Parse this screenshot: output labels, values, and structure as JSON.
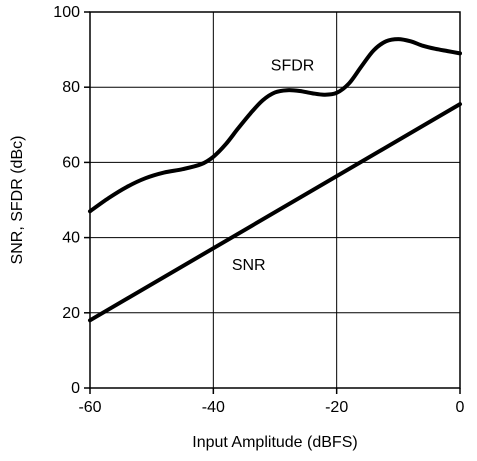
{
  "chart_data": {
    "type": "line",
    "xlabel": "Input Amplitude (dBFS)",
    "ylabel": "SNR, SFDR (dBc)",
    "xlim": [
      -60,
      0
    ],
    "ylim": [
      0,
      100
    ],
    "x_ticks": [
      -60,
      -40,
      -20,
      0
    ],
    "x_tick_labels": [
      "-60",
      "-40",
      "-20",
      "0"
    ],
    "y_ticks": [
      0,
      20,
      40,
      60,
      80,
      100
    ],
    "y_tick_labels": [
      "0",
      "20",
      "40",
      "60",
      "80",
      "100"
    ],
    "grid": true,
    "line_color": "#000000",
    "series": [
      {
        "name": "SFDR",
        "x": [
          -60,
          -57,
          -54,
          -51,
          -48,
          -45,
          -42,
          -40,
          -38,
          -36,
          -34,
          -32,
          -30,
          -28,
          -26,
          -24,
          -22,
          -20,
          -18,
          -16,
          -14,
          -12,
          -10,
          -8,
          -6,
          -4,
          -2,
          0
        ],
        "y": [
          47,
          50.5,
          53.5,
          55.8,
          57.3,
          58.2,
          59.5,
          61.5,
          64.8,
          69,
          73,
          76.5,
          78.6,
          79.2,
          79,
          78.4,
          78,
          78.5,
          81,
          85.5,
          89.8,
          92.2,
          92.8,
          92.2,
          91,
          90.2,
          89.6,
          89
        ]
      },
      {
        "name": "SNR",
        "x": [
          -60,
          0
        ],
        "y": [
          18,
          75.5
        ]
      }
    ]
  }
}
